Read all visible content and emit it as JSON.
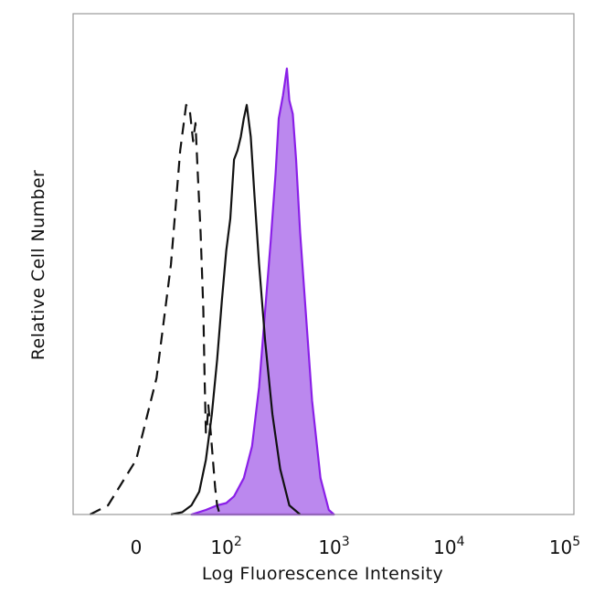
{
  "chart_data": {
    "type": "area",
    "title": "",
    "xlabel": "Log Fluorescence Intensity",
    "ylabel": "Relative Cell Number",
    "x_scale": "biexponential",
    "xlim": [
      -50,
      120000
    ],
    "ylim": [
      0,
      100
    ],
    "grid": false,
    "legend": "none",
    "tick_labels": [
      {
        "value": 0,
        "base": "0",
        "exp": ""
      },
      {
        "value": 100,
        "base": "10",
        "exp": "2"
      },
      {
        "value": 1000,
        "base": "10",
        "exp": "3"
      },
      {
        "value": 10000,
        "base": "10",
        "exp": "4"
      },
      {
        "value": 100000,
        "base": "10",
        "exp": "5"
      }
    ],
    "series": [
      {
        "style": "dashed",
        "color": "#111111",
        "x": [
          -30,
          -15,
          0,
          10,
          20,
          28,
          34,
          38,
          42,
          45,
          48,
          52,
          56,
          58,
          60,
          62,
          64,
          68,
          72,
          76,
          80,
          84,
          88,
          95
        ],
        "y": [
          0,
          2,
          12,
          30,
          55,
          80,
          90,
          89,
          82,
          86,
          75,
          62,
          45,
          30,
          18,
          20,
          24,
          18,
          12,
          6,
          2,
          0.5,
          0.2,
          0
        ]
      },
      {
        "style": "solid",
        "color": "#111111",
        "x": [
          20,
          30,
          40,
          50,
          60,
          70,
          80,
          90,
          100,
          110,
          120,
          130,
          140,
          150,
          160,
          175,
          190,
          210,
          240,
          280,
          330,
          400,
          500
        ],
        "y": [
          0,
          0.5,
          2,
          5,
          12,
          22,
          34,
          47,
          58,
          65,
          78,
          80,
          83,
          87,
          90,
          83,
          70,
          55,
          38,
          22,
          10,
          2,
          0
        ]
      },
      {
        "style": "filled",
        "color": "#8a1fe8",
        "fill": "#bb88ee",
        "x": [
          40,
          60,
          80,
          100,
          120,
          150,
          180,
          210,
          240,
          270,
          300,
          320,
          350,
          380,
          400,
          430,
          460,
          500,
          560,
          640,
          760,
          900,
          1000
        ],
        "y": [
          0,
          1,
          2,
          2.5,
          4,
          8,
          15,
          28,
          45,
          60,
          75,
          87,
          92,
          98,
          91,
          88,
          78,
          62,
          45,
          25,
          8,
          1,
          0
        ]
      }
    ]
  }
}
